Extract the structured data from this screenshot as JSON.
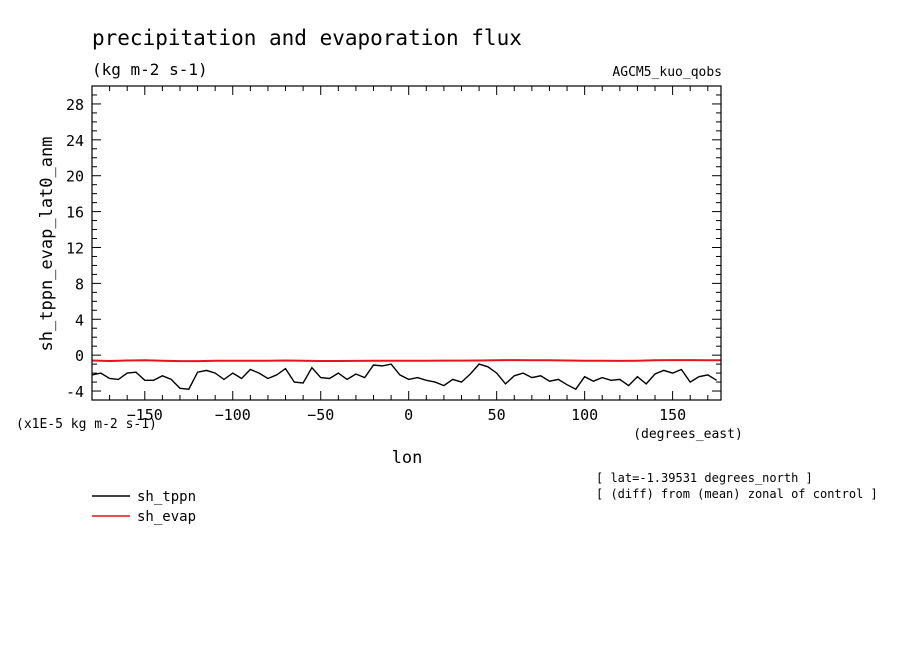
{
  "chart_data": {
    "type": "line",
    "title": "precipitation and evaporation flux",
    "subtitle": "(kg m-2 s-1)",
    "model_label": "AGCM5_kuo_qobs",
    "ylabel": "sh_tppn_evap_lat0_anm",
    "xlabel": "lon",
    "x_units_label": "(degrees_east)",
    "y_scale_label": "(x1E-5 kg m-2 s-1)",
    "xlim": [
      -180,
      177.5
    ],
    "ylim": [
      -5,
      30
    ],
    "x_ticks": [
      -150,
      -100,
      -50,
      0,
      50,
      100,
      150
    ],
    "x_tick_labels": [
      "-150",
      "-100",
      "-50",
      "0",
      "50",
      "100",
      "150"
    ],
    "y_ticks": [
      -4,
      0,
      4,
      8,
      12,
      16,
      20,
      24,
      28
    ],
    "y_tick_labels": [
      "-4",
      "0",
      "4",
      "8",
      "12",
      "16",
      "20",
      "24",
      "28"
    ],
    "notes": [
      "[ lat=-1.39531 degrees_north ]",
      "[ (diff) from (mean) zonal of control ]"
    ],
    "legend": {
      "placement": "bottom-left"
    },
    "series": [
      {
        "name": "sh_tppn",
        "color": "#000000",
        "x": [
          -180,
          -175,
          -170,
          -165,
          -160,
          -155,
          -150,
          -145,
          -140,
          -135,
          -130,
          -125,
          -120,
          -115,
          -110,
          -105,
          -100,
          -95,
          -90,
          -85,
          -80,
          -75,
          -70,
          -65,
          -60,
          -55,
          -50,
          -45,
          -40,
          -35,
          -30,
          -25,
          -20,
          -15,
          -10,
          -5,
          0,
          5,
          10,
          15,
          20,
          25,
          30,
          35,
          40,
          45,
          50,
          55,
          60,
          65,
          70,
          75,
          80,
          85,
          90,
          95,
          100,
          105,
          110,
          115,
          120,
          125,
          130,
          135,
          140,
          145,
          150,
          155,
          160,
          165,
          170,
          175
        ],
        "y": [
          -2.2,
          -2.0,
          -2.6,
          -2.7,
          -2.0,
          -1.9,
          -2.8,
          -2.8,
          -2.3,
          -2.7,
          -3.7,
          -3.8,
          -1.9,
          -1.7,
          -2.0,
          -2.7,
          -2.0,
          -2.6,
          -1.6,
          -2.0,
          -2.6,
          -2.2,
          -1.5,
          -3.0,
          -3.1,
          -1.4,
          -2.5,
          -2.6,
          -2.0,
          -2.7,
          -2.1,
          -2.5,
          -1.1,
          -1.2,
          -1.0,
          -2.2,
          -2.7,
          -2.5,
          -2.8,
          -3.0,
          -3.4,
          -2.7,
          -3.0,
          -2.1,
          -1.0,
          -1.3,
          -2.0,
          -3.2,
          -2.3,
          -2.0,
          -2.5,
          -2.3,
          -2.9,
          -2.7,
          -3.3,
          -3.8,
          -2.4,
          -2.9,
          -2.5,
          -2.8,
          -2.7,
          -3.4,
          -2.4,
          -3.2,
          -2.1,
          -1.7,
          -2.0,
          -1.6,
          -3.0,
          -2.4,
          -2.2,
          -2.8
        ]
      },
      {
        "name": "sh_evap",
        "color": "#e6141e",
        "x": [
          -180,
          -170,
          -160,
          -150,
          -140,
          -130,
          -120,
          -110,
          -100,
          -90,
          -80,
          -70,
          -60,
          -50,
          -40,
          -30,
          -20,
          -10,
          0,
          10,
          20,
          30,
          40,
          50,
          60,
          70,
          80,
          90,
          100,
          110,
          120,
          130,
          140,
          150,
          160,
          170,
          177.5
        ],
        "y": [
          -0.6,
          -0.65,
          -0.6,
          -0.58,
          -0.62,
          -0.66,
          -0.66,
          -0.63,
          -0.63,
          -0.62,
          -0.62,
          -0.6,
          -0.63,
          -0.65,
          -0.65,
          -0.64,
          -0.63,
          -0.62,
          -0.62,
          -0.62,
          -0.61,
          -0.61,
          -0.6,
          -0.56,
          -0.55,
          -0.56,
          -0.58,
          -0.6,
          -0.62,
          -0.63,
          -0.64,
          -0.62,
          -0.58,
          -0.55,
          -0.55,
          -0.56,
          -0.58
        ]
      }
    ]
  }
}
